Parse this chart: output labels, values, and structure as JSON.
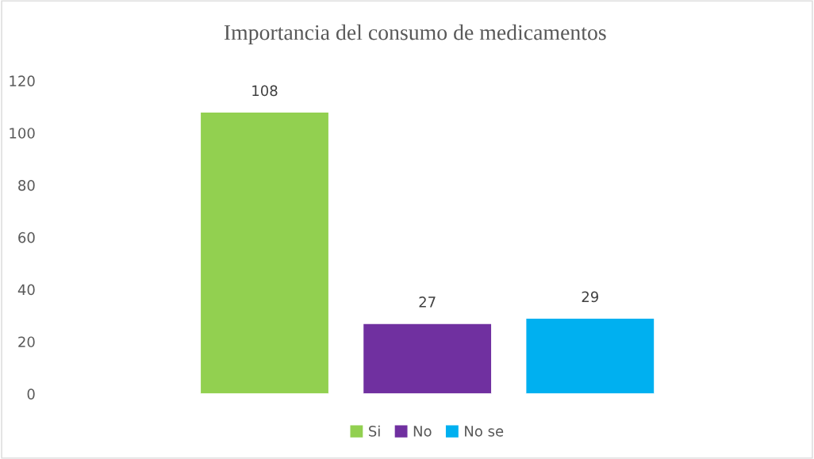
{
  "chart_data": {
    "type": "bar",
    "title": "Importancia del consumo de medicamentos",
    "categories": [
      null
    ],
    "series": [
      {
        "name": "Si",
        "color": "#92d050",
        "values": [
          108
        ]
      },
      {
        "name": "No",
        "color": "#7030a0",
        "values": [
          27
        ]
      },
      {
        "name": "No se",
        "color": "#00b0f0",
        "values": [
          29
        ]
      }
    ],
    "ylim": [
      0,
      120
    ],
    "yticks": [
      0,
      20,
      40,
      60,
      80,
      100,
      120
    ],
    "data_labels": true,
    "grid": false,
    "legend": "bottom"
  }
}
